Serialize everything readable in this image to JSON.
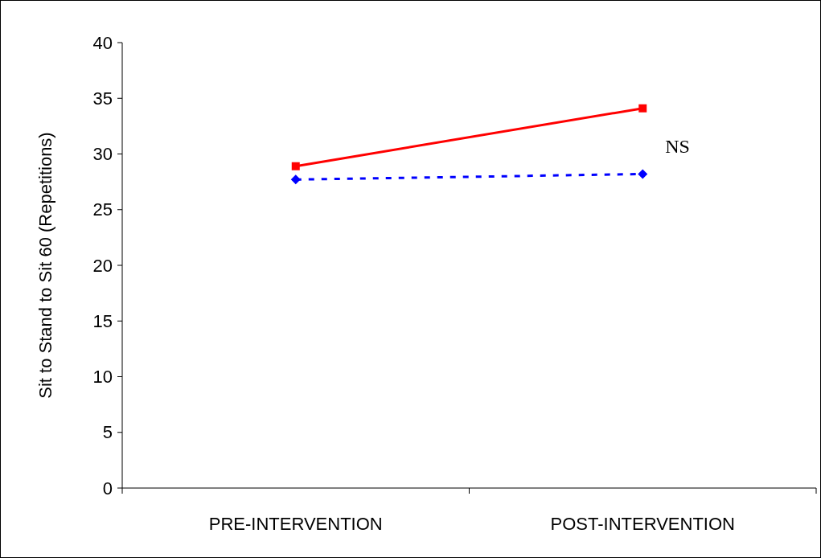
{
  "chart_data": {
    "type": "line",
    "ylabel": "Sit to Stand to Sit 60 (Repetitions)",
    "categories": [
      "PRE-INTERVENTION",
      "POST-INTERVENTION"
    ],
    "series": [
      {
        "color": "#ff0000",
        "values": [
          28.9,
          34.1
        ],
        "marker": "square",
        "line_style": "solid"
      },
      {
        "color": "#0000ff",
        "values": [
          27.7,
          28.2
        ],
        "marker": "diamond",
        "line_style": "dashed"
      }
    ],
    "ylim": [
      0,
      40
    ],
    "yticks": [
      0,
      5,
      10,
      15,
      20,
      25,
      30,
      35,
      40
    ],
    "grid": false,
    "annotations": [
      "NS"
    ]
  }
}
